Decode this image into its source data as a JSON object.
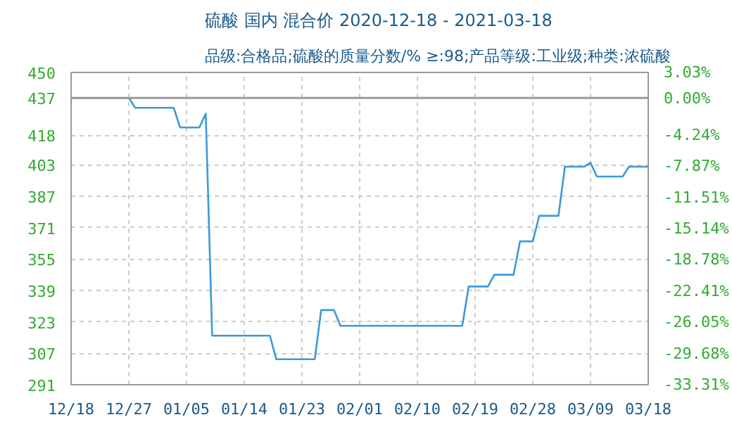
{
  "chart_data": {
    "type": "line",
    "title": "硫酸 国内 混合价 2020-12-18 - 2021-03-18",
    "subtitle": "品级:合格品;硫酸的质量分数/% ≥:98;产品等级:工业级;种类:浓硫酸",
    "x": [
      "2020-12-18",
      "2020-12-27",
      "2020-12-28",
      "2021-01-03",
      "2021-01-04",
      "2021-01-07",
      "2021-01-08",
      "2021-01-09",
      "2021-01-18",
      "2021-01-19",
      "2021-01-25",
      "2021-01-26",
      "2021-01-28",
      "2021-01-29",
      "2021-02-17",
      "2021-02-18",
      "2021-02-21",
      "2021-02-22",
      "2021-02-25",
      "2021-02-26",
      "2021-02-28",
      "2021-03-01",
      "2021-03-04",
      "2021-03-05",
      "2021-03-08",
      "2021-03-09",
      "2021-03-10",
      "2021-03-14",
      "2021-03-15",
      "2021-03-18"
    ],
    "series": [
      {
        "color": "#3a9ad9",
        "values": [
          437,
          437,
          432,
          432,
          422,
          422,
          429,
          316,
          316,
          304,
          304,
          329,
          329,
          321,
          321,
          341,
          341,
          347,
          347,
          364,
          364,
          377,
          377,
          402,
          402,
          404,
          397,
          397,
          402,
          402
        ]
      }
    ],
    "xlim": [
      "2020-12-18",
      "2021-03-18"
    ],
    "xticks": [
      {
        "value": "2020-12-18",
        "label": "12/18"
      },
      {
        "value": "2020-12-27",
        "label": "12/27"
      },
      {
        "value": "2021-01-05",
        "label": "01/05"
      },
      {
        "value": "2021-01-14",
        "label": "01/14"
      },
      {
        "value": "2021-01-23",
        "label": "01/23"
      },
      {
        "value": "2021-02-01",
        "label": "02/01"
      },
      {
        "value": "2021-02-10",
        "label": "02/10"
      },
      {
        "value": "2021-02-19",
        "label": "02/19"
      },
      {
        "value": "2021-02-28",
        "label": "02/28"
      },
      {
        "value": "2021-03-09",
        "label": "03/09"
      },
      {
        "value": "2021-03-18",
        "label": "03/18"
      }
    ],
    "ylim": [
      291,
      450
    ],
    "yticks": [
      291,
      307,
      323,
      339,
      355,
      371,
      387,
      403,
      418,
      437,
      450
    ],
    "y2lim": [
      -33.31,
      3.03
    ],
    "y2ticks": [
      {
        "value": -33.31,
        "label": "-33.31%"
      },
      {
        "value": -29.68,
        "label": "-29.68%"
      },
      {
        "value": -26.05,
        "label": "-26.05%"
      },
      {
        "value": -22.41,
        "label": "-22.41%"
      },
      {
        "value": -18.78,
        "label": "-18.78%"
      },
      {
        "value": -15.14,
        "label": "-15.14%"
      },
      {
        "value": -11.51,
        "label": "-11.51%"
      },
      {
        "value": -7.87,
        "label": "-7.87%"
      },
      {
        "value": -4.24,
        "label": "-4.24%"
      },
      {
        "value": 0,
        "label": "0.00%"
      },
      {
        "value": 3.03,
        "label": "3.03%"
      }
    ],
    "ref_lines": [
      {
        "axis": "y",
        "value": 437,
        "color": "#999999"
      }
    ],
    "grid": true,
    "line_style": "solid"
  }
}
